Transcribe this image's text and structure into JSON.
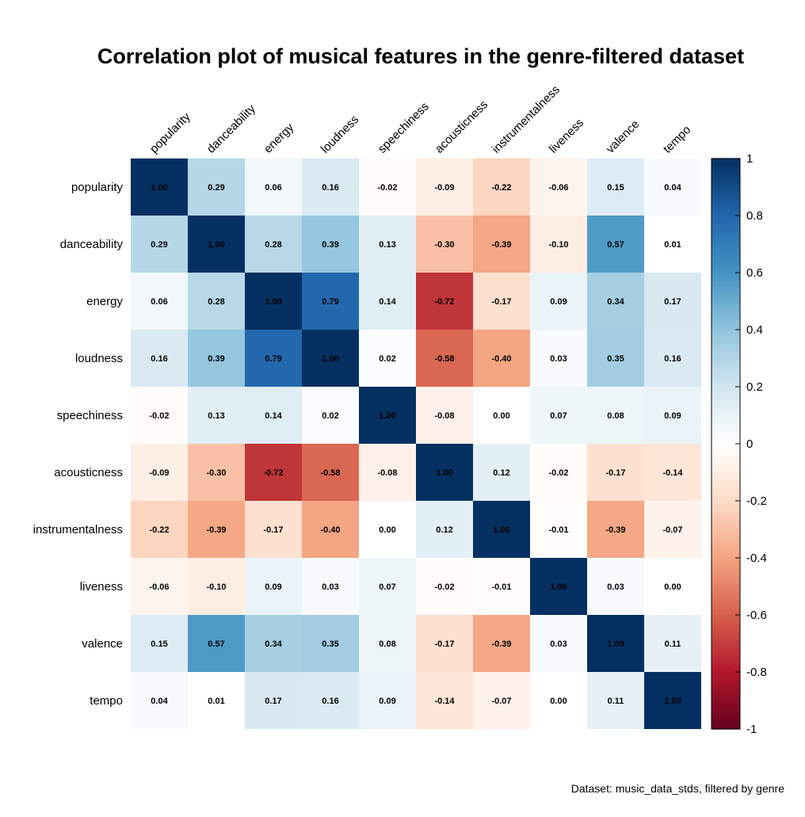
{
  "chart_data": {
    "type": "heatmap",
    "title": "Correlation plot of musical features in the genre-filtered dataset",
    "caption": "Dataset: music_data_stds, filtered by genre",
    "variables": [
      "popularity",
      "danceability",
      "energy",
      "loudness",
      "speechiness",
      "acousticness",
      "instrumentalness",
      "liveness",
      "valence",
      "tempo"
    ],
    "matrix": [
      [
        1.0,
        0.29,
        0.06,
        0.16,
        -0.02,
        -0.09,
        -0.22,
        -0.06,
        0.15,
        0.04
      ],
      [
        0.29,
        1.0,
        0.28,
        0.39,
        0.13,
        -0.3,
        -0.39,
        -0.1,
        0.57,
        0.01
      ],
      [
        0.06,
        0.28,
        1.0,
        0.79,
        0.14,
        -0.72,
        -0.17,
        0.09,
        0.34,
        0.17
      ],
      [
        0.16,
        0.39,
        0.79,
        1.0,
        0.02,
        -0.58,
        -0.4,
        0.03,
        0.35,
        0.16
      ],
      [
        -0.02,
        0.13,
        0.14,
        0.02,
        1.0,
        -0.08,
        0.0,
        0.07,
        0.08,
        0.09
      ],
      [
        -0.09,
        -0.3,
        -0.72,
        -0.58,
        -0.08,
        1.0,
        0.12,
        -0.02,
        -0.17,
        -0.14
      ],
      [
        -0.22,
        -0.39,
        -0.17,
        -0.4,
        0.0,
        0.12,
        1.0,
        -0.01,
        -0.39,
        -0.07
      ],
      [
        -0.06,
        -0.1,
        0.09,
        0.03,
        0.07,
        -0.02,
        -0.01,
        1.0,
        0.03,
        0.0
      ],
      [
        0.15,
        0.57,
        0.34,
        0.35,
        0.08,
        -0.17,
        -0.39,
        0.03,
        1.0,
        0.11
      ],
      [
        0.04,
        0.01,
        0.17,
        0.16,
        0.09,
        -0.14,
        -0.07,
        0.0,
        0.11,
        1.0
      ]
    ],
    "color_range": [
      -1,
      1
    ],
    "colorbar_ticks": [
      "1",
      "0.8",
      "0.6",
      "0.4",
      "0.2",
      "0",
      "-0.2",
      "-0.4",
      "-0.6",
      "-0.8",
      "-1"
    ],
    "colorbar_tick_values": [
      1,
      0.8,
      0.6,
      0.4,
      0.2,
      0,
      -0.2,
      -0.4,
      -0.6,
      -0.8,
      -1
    ],
    "colormap": [
      "#67001F",
      "#B2182B",
      "#D6604D",
      "#F4A582",
      "#FDDBC7",
      "#FFFFFF",
      "#D1E5F0",
      "#92C5DE",
      "#4393C3",
      "#2166AC",
      "#053061"
    ],
    "legend_position": "right"
  }
}
